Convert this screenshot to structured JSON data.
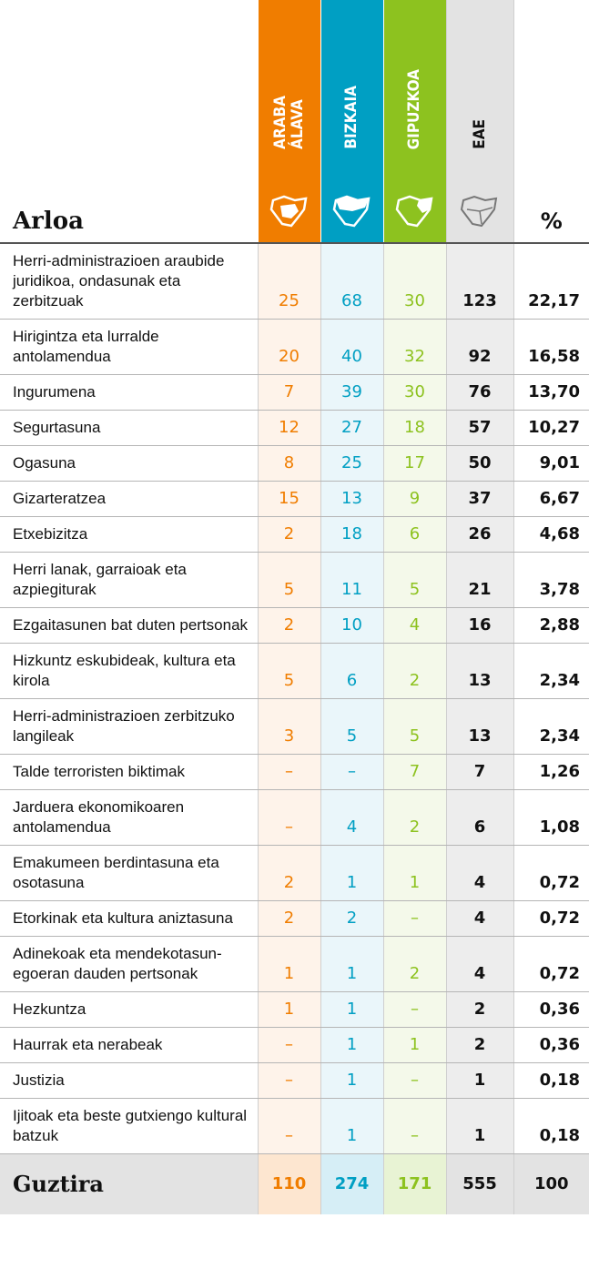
{
  "table": {
    "header": {
      "area": "Arloa",
      "araba": [
        "ARABA",
        "ÁLAVA"
      ],
      "bizkaia": "BIZKAIA",
      "gipuzkoa": "GIPUZKOA",
      "eae": "EAE",
      "pct": "%"
    },
    "rows": [
      [
        "Herri-administrazioen araubide juridikoa, ondasunak eta zerbitzuak",
        25,
        68,
        30,
        123,
        "22,17"
      ],
      [
        "Hirigintza eta lurralde antolamendua",
        20,
        40,
        32,
        92,
        "16,58"
      ],
      [
        "Ingurumena",
        7,
        39,
        30,
        76,
        "13,70"
      ],
      [
        "Segurtasuna",
        12,
        27,
        18,
        57,
        "10,27"
      ],
      [
        "Ogasuna",
        8,
        25,
        17,
        50,
        "9,01"
      ],
      [
        "Gizarteratzea",
        15,
        13,
        9,
        37,
        "6,67"
      ],
      [
        "Etxebizitza",
        2,
        18,
        6,
        26,
        "4,68"
      ],
      [
        "Herri lanak, garraioak eta azpiegiturak",
        5,
        11,
        5,
        21,
        "3,78"
      ],
      [
        "Ezgaitasunen bat duten pertsonak",
        2,
        10,
        4,
        16,
        "2,88"
      ],
      [
        "Hizkuntz eskubideak, kultura eta kirola",
        5,
        6,
        2,
        13,
        "2,34"
      ],
      [
        "Herri-administrazioen zerbitzuko langileak",
        3,
        5,
        5,
        13,
        "2,34"
      ],
      [
        "Talde terroristen biktimak",
        "–",
        "–",
        7,
        7,
        "1,26"
      ],
      [
        "Jarduera ekonomikoaren antolamendua",
        "–",
        4,
        2,
        6,
        "1,08"
      ],
      [
        "Emakumeen berdintasuna eta osotasuna",
        2,
        1,
        1,
        4,
        "0,72"
      ],
      [
        "Etorkinak eta kultura aniztasuna",
        2,
        2,
        "–",
        4,
        "0,72"
      ],
      [
        "Adinekoak eta mendekotasun-egoeran dauden pertsonak",
        1,
        1,
        2,
        4,
        "0,72"
      ],
      [
        "Hezkuntza",
        1,
        1,
        "–",
        2,
        "0,36"
      ],
      [
        "Haurrak eta nerabeak",
        "–",
        1,
        1,
        2,
        "0,36"
      ],
      [
        "Justizia",
        "–",
        1,
        "–",
        1,
        "0,18"
      ],
      [
        "Ijitoak eta beste gutxiengo kultural batzuk",
        "–",
        1,
        "–",
        1,
        "0,18"
      ]
    ],
    "total": [
      "Guztira",
      110,
      274,
      171,
      555,
      100
    ]
  }
}
